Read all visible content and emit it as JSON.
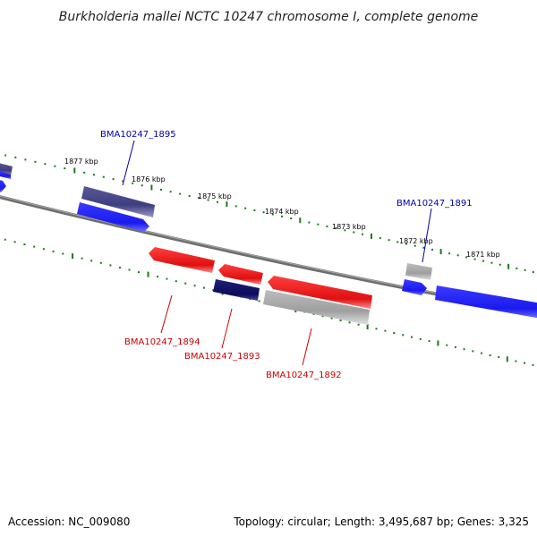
{
  "title": "Burkholderia mallei NCTC 10247 chromosome I, complete genome",
  "footer": {
    "accession": "Accession: NC_009080",
    "summary": "Topology: circular; Length: 3,495,687 bp; Genes: 3,325"
  },
  "colors": {
    "backbone": "#7a7a7a",
    "tick_dots": "#1a7a1a",
    "gene_blue": "#1a1aee",
    "gene_navy": "#10106a",
    "gene_slate": "#4a4a8a",
    "gene_red": "#ee1a1a",
    "gene_gray": "#aaaaaa",
    "label_plus": "#0000aa",
    "label_minus": "#cc0000"
  },
  "scale_labels": [
    "1877 kbp",
    "1876 kbp",
    "1875 kbp",
    "1874 kbp",
    "1873 kbp",
    "1872 kbp",
    "1871 kbp"
  ],
  "gene_labels": {
    "plus": [
      "BMA10247_1895",
      "BMA10247_1891"
    ],
    "minus": [
      "BMA10247_1894",
      "BMA10247_1893",
      "BMA10247_1892"
    ]
  },
  "features": [
    {
      "strand": "plus",
      "color": "gene_slate",
      "arrow": "none"
    },
    {
      "strand": "plus",
      "color": "gene_blue",
      "arrow": "right"
    },
    {
      "strand": "plus",
      "color": "gene_blue",
      "arrow": "right"
    },
    {
      "strand": "plus",
      "color": "gene_slate",
      "arrow": "none"
    },
    {
      "strand": "plus",
      "color": "gene_gray",
      "arrow": "none"
    },
    {
      "strand": "plus",
      "color": "gene_blue",
      "arrow": "right"
    },
    {
      "strand": "plus",
      "color": "gene_blue",
      "arrow": "none"
    },
    {
      "strand": "minus",
      "color": "gene_red",
      "arrow": "left"
    },
    {
      "strand": "minus",
      "color": "gene_red",
      "arrow": "left"
    },
    {
      "strand": "minus",
      "color": "gene_red",
      "arrow": "left"
    },
    {
      "strand": "minus",
      "color": "gene_navy",
      "arrow": "none"
    },
    {
      "strand": "minus",
      "color": "gene_gray",
      "arrow": "none"
    }
  ]
}
